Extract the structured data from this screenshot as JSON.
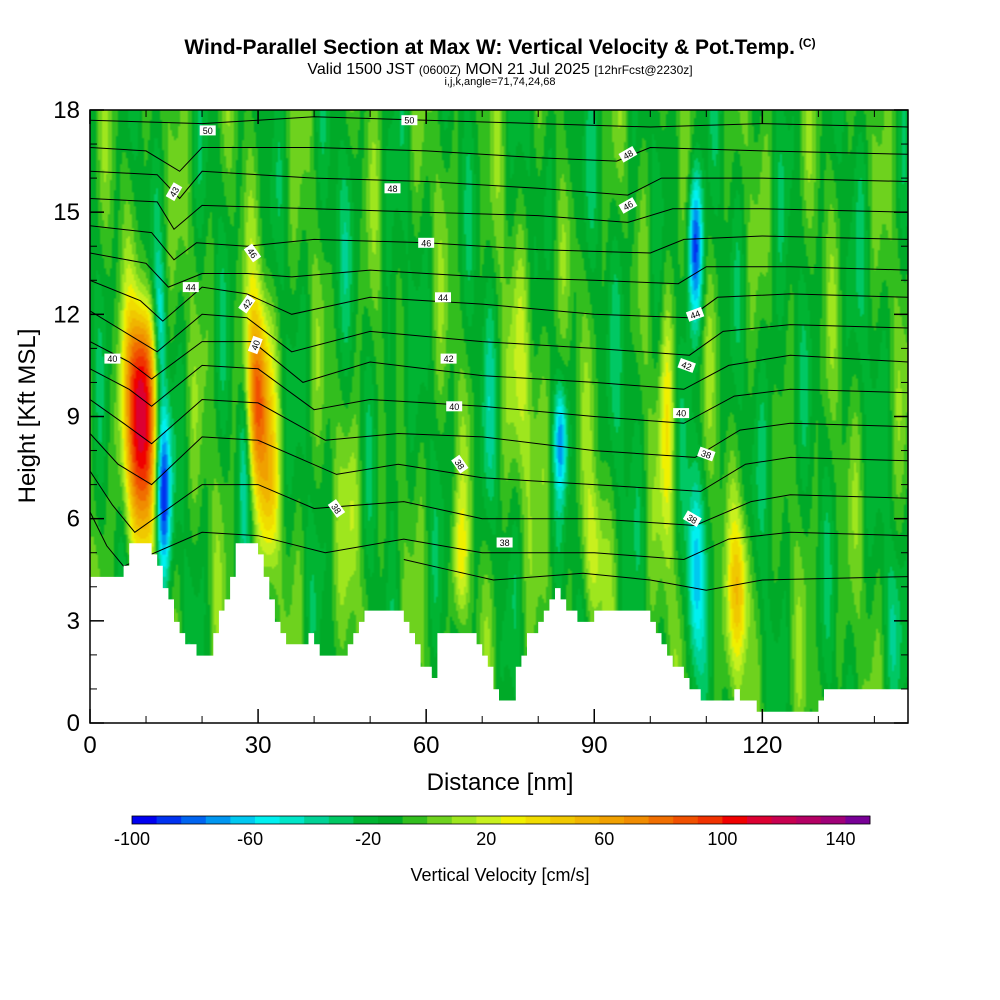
{
  "title": {
    "main": "Wind-Parallel Section at Max W: Vertical Velocity & Pot.Temp.",
    "copyright": "(C)",
    "valid_prefix": "Valid 1500 JST",
    "valid_utc": "(0600Z)",
    "valid_date": "MON 21 Jul 2025",
    "forecast": "[12hrFcst@2230z]",
    "params": "i,j,k,angle=71,74,24,68"
  },
  "colors": {
    "background": "#ffffff",
    "terrain": "#ffffff",
    "contour": "#000000",
    "palette": [
      "#0000f0",
      "#0032f0",
      "#0064f0",
      "#0096f0",
      "#00c8f0",
      "#00f0f0",
      "#00e6c8",
      "#00d296",
      "#00c864",
      "#00b432",
      "#00aa28",
      "#32be1e",
      "#6ed21e",
      "#9ee61e",
      "#c8f01e",
      "#f0f000",
      "#f0dc00",
      "#f0c800",
      "#f0b400",
      "#f0a000",
      "#f08c00",
      "#f06e00",
      "#f05000",
      "#f03200",
      "#f00000",
      "#dc0032",
      "#c80050",
      "#b40064",
      "#a00078",
      "#780096"
    ]
  },
  "chart_data": {
    "type": "heatmap",
    "xlabel": "Distance [nm]",
    "ylabel": "Height [Kft MSL]",
    "xlim": [
      0,
      146
    ],
    "ylim": [
      0,
      18
    ],
    "xticks": [
      0,
      30,
      60,
      90,
      120
    ],
    "yticks": [
      0,
      3,
      6,
      9,
      12,
      15,
      18
    ],
    "colorbar": {
      "label": "Vertical Velocity [cm/s]",
      "min": -100,
      "max": 150,
      "step": 10,
      "ticks": [
        -100,
        -60,
        -20,
        20,
        60,
        100,
        140
      ]
    },
    "background_w": 10,
    "terrain_profile": [
      [
        0,
        4.3
      ],
      [
        6,
        4.3
      ],
      [
        7,
        4.5
      ],
      [
        8,
        5.3
      ],
      [
        11,
        5.3
      ],
      [
        13,
        4.5
      ],
      [
        15,
        3.5
      ],
      [
        17,
        2.7
      ],
      [
        18,
        2.4
      ],
      [
        20,
        2.0
      ],
      [
        22,
        2.0
      ],
      [
        24,
        3.2
      ],
      [
        26,
        4.3
      ],
      [
        27,
        5.2
      ],
      [
        30,
        5.3
      ],
      [
        32,
        4.4
      ],
      [
        34,
        3.1
      ],
      [
        36,
        2.4
      ],
      [
        38,
        2.3
      ],
      [
        40,
        2.5
      ],
      [
        42,
        2.1
      ],
      [
        46,
        2.1
      ],
      [
        48,
        2.6
      ],
      [
        50,
        3.3
      ],
      [
        56,
        3.3
      ],
      [
        57,
        3.0
      ],
      [
        58,
        2.6
      ],
      [
        60,
        1.8
      ],
      [
        62,
        1.4
      ],
      [
        63,
        2.6
      ],
      [
        66,
        2.7
      ],
      [
        69,
        2.5
      ],
      [
        71,
        2.0
      ],
      [
        73,
        1.0
      ],
      [
        75,
        0.5
      ],
      [
        76,
        0.8
      ],
      [
        77,
        1.5
      ],
      [
        79,
        2.5
      ],
      [
        82,
        3.3
      ],
      [
        84,
        3.8
      ],
      [
        86,
        3.3
      ],
      [
        88,
        3.0
      ],
      [
        90,
        3.0
      ],
      [
        92,
        3.3
      ],
      [
        100,
        3.3
      ],
      [
        102,
        2.5
      ],
      [
        104,
        2.1
      ],
      [
        106,
        1.5
      ],
      [
        110,
        0.8
      ],
      [
        112,
        0.6
      ],
      [
        114,
        0.6
      ],
      [
        116,
        1.0
      ],
      [
        118,
        0.6
      ],
      [
        122,
        0.3
      ],
      [
        130,
        0.4
      ],
      [
        132,
        1.0
      ],
      [
        140,
        1.0
      ],
      [
        146,
        1.0
      ]
    ],
    "vertical_velocity_cells": [
      {
        "x": 9,
        "z": 8.5,
        "sx": 2.0,
        "sz": 2.2,
        "w": 140
      },
      {
        "x": 9.5,
        "z": 10.8,
        "sx": 1.8,
        "sz": 1.2,
        "w": 45
      },
      {
        "x": 13,
        "z": 6.8,
        "sx": 1.0,
        "sz": 1.8,
        "w": -100
      },
      {
        "x": 12.5,
        "z": 11.5,
        "sx": 0.8,
        "sz": 1.5,
        "w": -45
      },
      {
        "x": 30,
        "z": 9.5,
        "sx": 1.6,
        "sz": 2.0,
        "w": 110
      },
      {
        "x": 27.5,
        "z": 8.0,
        "sx": 0.8,
        "sz": 1.8,
        "w": -35
      },
      {
        "x": 32,
        "z": 6.5,
        "sx": 1.2,
        "sz": 1.5,
        "w": 40
      },
      {
        "x": 84,
        "z": 8.3,
        "sx": 0.8,
        "sz": 1.1,
        "w": -65
      },
      {
        "x": 108,
        "z": 14.0,
        "sx": 1.0,
        "sz": 1.6,
        "w": -95
      },
      {
        "x": 108,
        "z": 4.5,
        "sx": 1.0,
        "sz": 2.0,
        "w": -65
      },
      {
        "x": 116,
        "z": 3.8,
        "sx": 1.4,
        "sz": 1.6,
        "w": 60
      },
      {
        "x": 103,
        "z": 9.0,
        "sx": 1.0,
        "sz": 3.0,
        "w": 40
      },
      {
        "x": 66,
        "z": 4.8,
        "sx": 1.0,
        "sz": 1.3,
        "w": 35
      },
      {
        "x": 90,
        "z": 5.0,
        "sx": 1.2,
        "sz": 1.5,
        "w": 35
      },
      {
        "x": 47,
        "z": 6.0,
        "sx": 1.0,
        "sz": 2.0,
        "w": 30
      },
      {
        "x": 78,
        "z": 10.0,
        "sx": 3.0,
        "sz": 2.5,
        "w": 20
      },
      {
        "x": 54,
        "z": 9.5,
        "sx": 1.0,
        "sz": 2.5,
        "w": -25
      },
      {
        "x": 71,
        "z": 9.5,
        "sx": 1.0,
        "sz": 2.5,
        "w": -20
      },
      {
        "x": 96,
        "z": 11.0,
        "sx": 1.5,
        "sz": 3.0,
        "w": -15
      },
      {
        "x": 122,
        "z": 9.0,
        "sx": 2.0,
        "sz": 3.0,
        "w": -15
      },
      {
        "x": 138,
        "z": 12.0,
        "sx": 3.0,
        "sz": 3.0,
        "w": -5
      },
      {
        "x": 143,
        "z": 3.0,
        "sx": 1.5,
        "sz": 1.5,
        "w": -15
      },
      {
        "x": 85,
        "z": 16.5,
        "sx": 3.0,
        "sz": 1.5,
        "w": -10
      },
      {
        "x": 44,
        "z": 14.5,
        "sx": 2.5,
        "sz": 2.0,
        "w": -10
      }
    ],
    "potential_temperature_labels": [
      {
        "text": "50",
        "x": 21,
        "z": 17.4,
        "angle": 0
      },
      {
        "text": "50",
        "x": 57,
        "z": 17.7,
        "angle": 0
      },
      {
        "text": "48",
        "x": 96,
        "z": 16.7,
        "angle": -30
      },
      {
        "text": "43",
        "x": 15,
        "z": 15.6,
        "angle": -60
      },
      {
        "text": "48",
        "x": 54,
        "z": 15.7,
        "angle": 0
      },
      {
        "text": "46",
        "x": 96,
        "z": 15.2,
        "angle": -30
      },
      {
        "text": "46",
        "x": 29,
        "z": 13.8,
        "angle": 55
      },
      {
        "text": "46",
        "x": 60,
        "z": 14.1,
        "angle": 0
      },
      {
        "text": "44",
        "x": 18,
        "z": 12.8,
        "angle": 0
      },
      {
        "text": "44",
        "x": 63,
        "z": 12.5,
        "angle": 0
      },
      {
        "text": "44",
        "x": 108,
        "z": 12.0,
        "angle": -20
      },
      {
        "text": "42",
        "x": 28,
        "z": 12.3,
        "angle": -55
      },
      {
        "text": "40",
        "x": 29.5,
        "z": 11.1,
        "angle": -70
      },
      {
        "text": "40",
        "x": 4,
        "z": 10.7,
        "angle": 0
      },
      {
        "text": "42",
        "x": 64,
        "z": 10.7,
        "angle": 0
      },
      {
        "text": "42",
        "x": 106.5,
        "z": 10.5,
        "angle": 20
      },
      {
        "text": "40",
        "x": 65,
        "z": 9.3,
        "angle": 0
      },
      {
        "text": "40",
        "x": 105.5,
        "z": 9.1,
        "angle": 0
      },
      {
        "text": "38",
        "x": 66,
        "z": 7.6,
        "angle": 55
      },
      {
        "text": "38",
        "x": 110,
        "z": 7.9,
        "angle": 20
      },
      {
        "text": "38",
        "x": 44,
        "z": 6.3,
        "angle": 55
      },
      {
        "text": "38",
        "x": 107.5,
        "z": 6.0,
        "angle": 30
      },
      {
        "text": "38",
        "x": 74,
        "z": 5.3,
        "angle": 0
      }
    ],
    "potential_temperature_contours": [
      [
        [
          0,
          17.7
        ],
        [
          20,
          17.6
        ],
        [
          40,
          17.8
        ],
        [
          60,
          17.7
        ],
        [
          80,
          17.6
        ],
        [
          100,
          17.5
        ],
        [
          120,
          17.6
        ],
        [
          146,
          17.5
        ]
      ],
      [
        [
          0,
          16.9
        ],
        [
          10,
          16.8
        ],
        [
          16,
          16.2
        ],
        [
          20,
          16.9
        ],
        [
          40,
          16.9
        ],
        [
          60,
          16.8
        ],
        [
          80,
          16.6
        ],
        [
          94,
          16.5
        ],
        [
          100,
          16.9
        ],
        [
          120,
          16.8
        ],
        [
          146,
          16.7
        ]
      ],
      [
        [
          0,
          16.2
        ],
        [
          12,
          16.1
        ],
        [
          16,
          15.4
        ],
        [
          20,
          16.2
        ],
        [
          40,
          16.0
        ],
        [
          60,
          15.9
        ],
        [
          80,
          15.7
        ],
        [
          96,
          15.5
        ],
        [
          102,
          16.0
        ],
        [
          120,
          16.0
        ],
        [
          146,
          15.9
        ]
      ],
      [
        [
          0,
          15.4
        ],
        [
          12,
          15.3
        ],
        [
          15,
          14.5
        ],
        [
          20,
          15.2
        ],
        [
          40,
          15.1
        ],
        [
          60,
          15.0
        ],
        [
          80,
          14.9
        ],
        [
          96,
          14.7
        ],
        [
          104,
          15.1
        ],
        [
          120,
          15.1
        ],
        [
          146,
          15.0
        ]
      ],
      [
        [
          0,
          14.6
        ],
        [
          11,
          14.4
        ],
        [
          15,
          13.6
        ],
        [
          19,
          14.1
        ],
        [
          28,
          14.0
        ],
        [
          40,
          14.2
        ],
        [
          60,
          14.1
        ],
        [
          80,
          13.9
        ],
        [
          100,
          13.8
        ],
        [
          106,
          14.2
        ],
        [
          120,
          14.3
        ],
        [
          146,
          14.2
        ]
      ],
      [
        [
          0,
          13.8
        ],
        [
          10,
          13.5
        ],
        [
          14,
          12.8
        ],
        [
          20,
          13.2
        ],
        [
          28,
          13.2
        ],
        [
          36,
          13.1
        ],
        [
          50,
          13.3
        ],
        [
          70,
          13.1
        ],
        [
          90,
          13.0
        ],
        [
          105,
          12.9
        ],
        [
          110,
          13.4
        ],
        [
          125,
          13.4
        ],
        [
          146,
          13.3
        ]
      ],
      [
        [
          0,
          13.0
        ],
        [
          9,
          12.4
        ],
        [
          13,
          11.8
        ],
        [
          20,
          12.8
        ],
        [
          28,
          12.6
        ],
        [
          36,
          12.0
        ],
        [
          50,
          12.5
        ],
        [
          70,
          12.3
        ],
        [
          90,
          12.0
        ],
        [
          107,
          11.9
        ],
        [
          112,
          12.5
        ],
        [
          125,
          12.6
        ],
        [
          146,
          12.5
        ]
      ],
      [
        [
          0,
          12.1
        ],
        [
          8,
          11.3
        ],
        [
          12,
          10.9
        ],
        [
          20,
          12.0
        ],
        [
          28,
          11.9
        ],
        [
          36,
          10.9
        ],
        [
          50,
          11.5
        ],
        [
          70,
          11.2
        ],
        [
          90,
          11.0
        ],
        [
          107,
          10.8
        ],
        [
          113,
          11.5
        ],
        [
          125,
          11.7
        ],
        [
          146,
          11.6
        ]
      ],
      [
        [
          0,
          11.2
        ],
        [
          7,
          10.6
        ],
        [
          11,
          10.1
        ],
        [
          20,
          11.2
        ],
        [
          29,
          11.2
        ],
        [
          38,
          10.0
        ],
        [
          50,
          10.6
        ],
        [
          70,
          10.2
        ],
        [
          90,
          10.0
        ],
        [
          106,
          9.8
        ],
        [
          114,
          10.5
        ],
        [
          125,
          10.8
        ],
        [
          146,
          10.6
        ]
      ],
      [
        [
          0,
          10.4
        ],
        [
          7,
          9.8
        ],
        [
          11,
          9.3
        ],
        [
          20,
          10.5
        ],
        [
          30,
          10.4
        ],
        [
          40,
          9.2
        ],
        [
          50,
          9.5
        ],
        [
          70,
          9.3
        ],
        [
          90,
          9.0
        ],
        [
          106,
          8.8
        ],
        [
          115,
          9.6
        ],
        [
          125,
          9.8
        ],
        [
          146,
          9.7
        ]
      ],
      [
        [
          0,
          9.5
        ],
        [
          6,
          8.8
        ],
        [
          11,
          8.2
        ],
        [
          20,
          9.5
        ],
        [
          30,
          9.4
        ],
        [
          42,
          8.3
        ],
        [
          55,
          8.5
        ],
        [
          70,
          8.4
        ],
        [
          90,
          8.0
        ],
        [
          108,
          7.8
        ],
        [
          116,
          8.6
        ],
        [
          125,
          8.8
        ],
        [
          146,
          8.7
        ]
      ],
      [
        [
          0,
          8.5
        ],
        [
          5,
          7.6
        ],
        [
          11,
          7.0
        ],
        [
          20,
          8.4
        ],
        [
          30,
          8.3
        ],
        [
          44,
          7.3
        ],
        [
          55,
          7.6
        ],
        [
          70,
          7.2
        ],
        [
          90,
          7.0
        ],
        [
          109,
          6.8
        ],
        [
          117,
          7.6
        ],
        [
          125,
          7.8
        ],
        [
          146,
          7.7
        ]
      ],
      [
        [
          0,
          7.4
        ],
        [
          4,
          6.4
        ],
        [
          8,
          5.6
        ],
        [
          20,
          7.0
        ],
        [
          30,
          7.0
        ],
        [
          40,
          6.3
        ],
        [
          56,
          6.5
        ],
        [
          70,
          6.0
        ],
        [
          90,
          6.0
        ],
        [
          108,
          5.8
        ],
        [
          118,
          6.5
        ],
        [
          125,
          6.7
        ],
        [
          146,
          6.6
        ]
      ],
      [
        [
          0,
          6.2
        ],
        [
          3,
          5.2
        ],
        [
          6,
          4.6
        ],
        [
          20,
          5.6
        ],
        [
          30,
          5.5
        ],
        [
          42,
          5.0
        ],
        [
          56,
          5.4
        ],
        [
          70,
          5.0
        ],
        [
          90,
          5.0
        ],
        [
          106,
          4.8
        ],
        [
          114,
          5.4
        ],
        [
          125,
          5.6
        ],
        [
          146,
          5.5
        ]
      ],
      [
        [
          56,
          4.8
        ],
        [
          64,
          4.5
        ],
        [
          72,
          4.2
        ],
        [
          80,
          4.3
        ],
        [
          88,
          4.4
        ],
        [
          100,
          4.2
        ],
        [
          110,
          3.9
        ],
        [
          120,
          4.2
        ],
        [
          146,
          4.3
        ]
      ]
    ]
  }
}
